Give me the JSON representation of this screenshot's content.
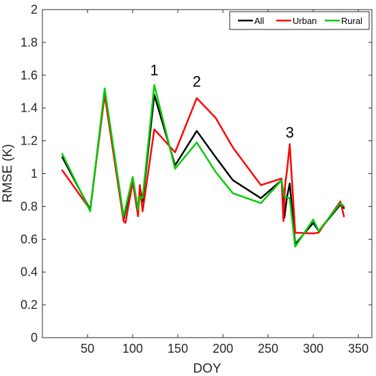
{
  "chart_data": {
    "type": "line",
    "title": "",
    "xlabel": "DOY",
    "ylabel": "RMSE (K)",
    "xlim": [
      0,
      365
    ],
    "ylim": [
      0,
      2
    ],
    "xticks": [
      50,
      100,
      150,
      200,
      250,
      300,
      350
    ],
    "yticks": [
      0,
      0.2,
      0.4,
      0.6,
      0.8,
      1,
      1.2,
      1.4,
      1.6,
      1.8,
      2
    ],
    "xtick_labels": [
      "50",
      "100",
      "150",
      "200",
      "250",
      "300",
      "350"
    ],
    "ytick_labels": [
      "0",
      "0.2",
      "0.4",
      "0.6",
      "0.8",
      "1",
      "1.2",
      "1.4",
      "1.6",
      "1.8",
      "2"
    ],
    "grid": false,
    "legend_position": "top-right",
    "series": [
      {
        "name": "All",
        "color": "#000000",
        "x": [
          22,
          53,
          69,
          90,
          100,
          106,
          108,
          111,
          124,
          147,
          171,
          192,
          211,
          242,
          265,
          268,
          271,
          274,
          280,
          300,
          306,
          330,
          334
        ],
        "y": [
          1.1,
          0.78,
          1.5,
          0.72,
          0.97,
          0.76,
          0.92,
          0.83,
          1.48,
          1.05,
          1.26,
          1.1,
          0.96,
          0.85,
          0.96,
          0.73,
          0.86,
          0.94,
          0.57,
          0.7,
          0.65,
          0.81,
          0.79
        ]
      },
      {
        "name": "Urban",
        "color": "#ff0000",
        "x": [
          22,
          53,
          69,
          90,
          92,
          100,
          106,
          108,
          111,
          124,
          147,
          171,
          192,
          211,
          242,
          265,
          267,
          269,
          271,
          274,
          280,
          300,
          306,
          330,
          334
        ],
        "y": [
          1.02,
          0.78,
          1.48,
          0.71,
          0.7,
          0.95,
          0.74,
          0.93,
          0.77,
          1.27,
          1.13,
          1.46,
          1.34,
          1.16,
          0.93,
          0.97,
          0.71,
          0.94,
          1.02,
          1.18,
          0.64,
          0.635,
          0.64,
          0.83,
          0.74
        ]
      },
      {
        "name": "Rural",
        "color": "#00cc00",
        "x": [
          22,
          53,
          69,
          90,
          100,
          106,
          108,
          111,
          124,
          147,
          171,
          192,
          211,
          242,
          265,
          268,
          274,
          280,
          300,
          306,
          330,
          334
        ],
        "y": [
          1.12,
          0.77,
          1.52,
          0.74,
          0.98,
          0.78,
          0.86,
          0.85,
          1.54,
          1.03,
          1.19,
          1.01,
          0.88,
          0.82,
          0.96,
          0.86,
          0.85,
          0.555,
          0.72,
          0.65,
          0.82,
          0.8
        ]
      }
    ],
    "annotations": [
      {
        "text": "1",
        "x": 124,
        "y": 1.6
      },
      {
        "text": "2",
        "x": 171,
        "y": 1.53
      },
      {
        "text": "3",
        "x": 274,
        "y": 1.22
      }
    ]
  }
}
